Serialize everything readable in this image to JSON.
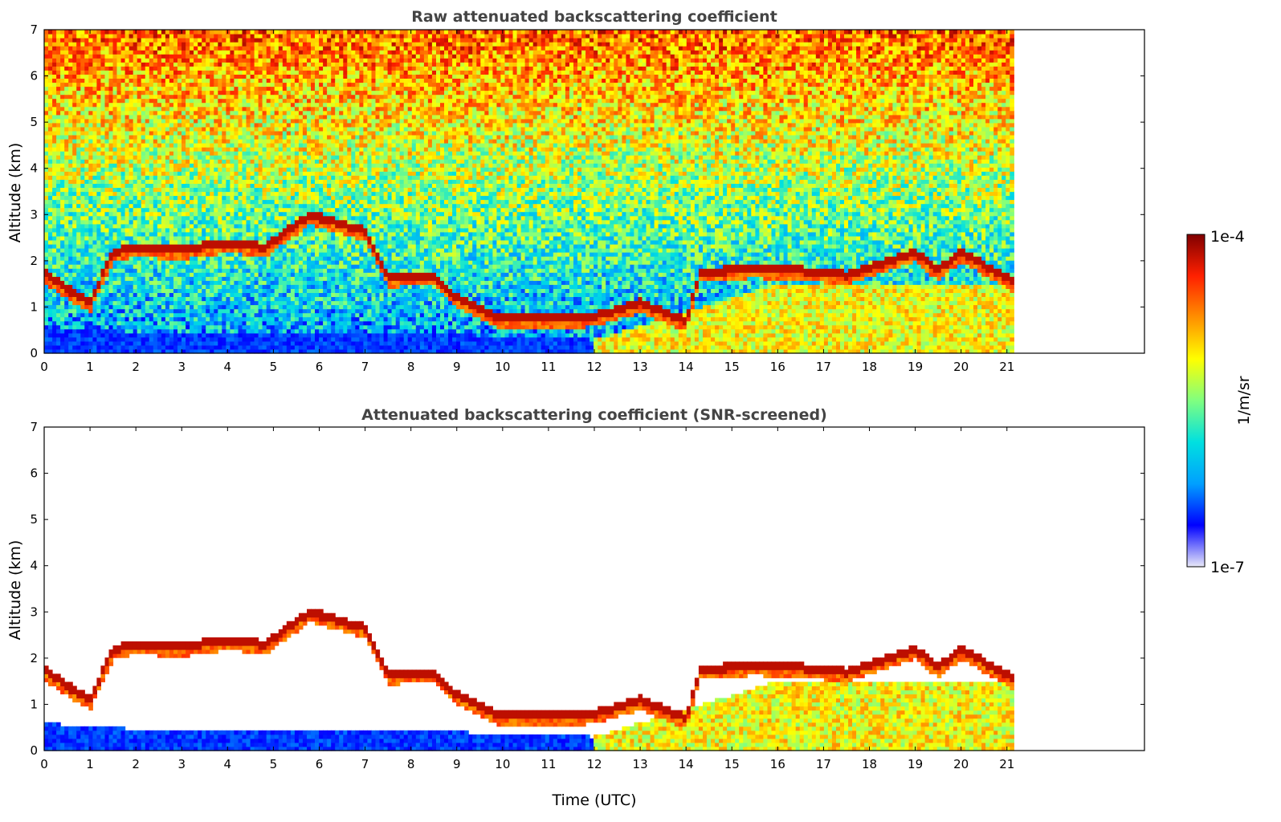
{
  "chart_data": [
    {
      "type": "heatmap",
      "title": "Raw attenuated backscattering coefficient",
      "xlabel": "",
      "ylabel": "Altitude (km)",
      "xlim": [
        0,
        24
      ],
      "ylim": [
        0,
        7
      ],
      "data_extent_x": [
        0,
        21.15
      ],
      "xticks": [
        0,
        1,
        2,
        3,
        4,
        5,
        6,
        7,
        8,
        9,
        10,
        11,
        12,
        13,
        14,
        15,
        16,
        17,
        18,
        19,
        20,
        21
      ],
      "yticks": [
        0,
        1,
        2,
        3,
        4,
        5,
        6,
        7
      ],
      "screened": false,
      "features": {
        "cloud_layer_km": [
          [
            0,
            1.75
          ],
          [
            0.5,
            1.4
          ],
          [
            1.0,
            1.1
          ],
          [
            1.5,
            2.2
          ],
          [
            2.0,
            2.3
          ],
          [
            3.0,
            2.25
          ],
          [
            4.0,
            2.4
          ],
          [
            4.8,
            2.3
          ],
          [
            5.8,
            3.0
          ],
          [
            7.0,
            2.65
          ],
          [
            7.5,
            1.65
          ],
          [
            8.5,
            1.7
          ],
          [
            9.0,
            1.2
          ],
          [
            10.0,
            0.75
          ],
          [
            11.0,
            0.75
          ],
          [
            12.0,
            0.8
          ],
          [
            13.0,
            1.1
          ],
          [
            14.0,
            0.7
          ],
          [
            14.3,
            1.75
          ],
          [
            15.5,
            1.85
          ],
          [
            16.5,
            1.8
          ],
          [
            17.5,
            1.7
          ],
          [
            19.0,
            2.2
          ],
          [
            19.5,
            1.8
          ],
          [
            20.0,
            2.2
          ],
          [
            21.15,
            1.55
          ]
        ],
        "boundary_layer_km": [
          [
            0,
            0.6
          ],
          [
            1,
            0.5
          ],
          [
            3,
            0.45
          ],
          [
            6,
            0.4
          ],
          [
            9,
            0.4
          ],
          [
            11,
            0.35
          ],
          [
            12,
            0.3
          ],
          [
            16,
            1.5
          ],
          [
            21.15,
            1.5
          ]
        ]
      }
    },
    {
      "type": "heatmap",
      "title": "Attenuated backscattering coefficient (SNR-screened)",
      "xlabel": "Time (UTC)",
      "ylabel": "Altitude (km)",
      "xlim": [
        0,
        24
      ],
      "ylim": [
        0,
        7
      ],
      "data_extent_x": [
        0,
        21.15
      ],
      "xticks": [
        0,
        1,
        2,
        3,
        4,
        5,
        6,
        7,
        8,
        9,
        10,
        11,
        12,
        13,
        14,
        15,
        16,
        17,
        18,
        19,
        20,
        21
      ],
      "yticks": [
        0,
        1,
        2,
        3,
        4,
        5,
        6,
        7
      ],
      "screened": true
    }
  ],
  "colorbar": {
    "label": "1/m/sr",
    "max_label": "1e-4",
    "min_label": "1e-7",
    "scale": "log",
    "colors": [
      "#e8e8f8",
      "#0000ff",
      "#00a0ff",
      "#00e0e0",
      "#80ff80",
      "#ffff00",
      "#ff9000",
      "#ff2000",
      "#800000"
    ]
  }
}
